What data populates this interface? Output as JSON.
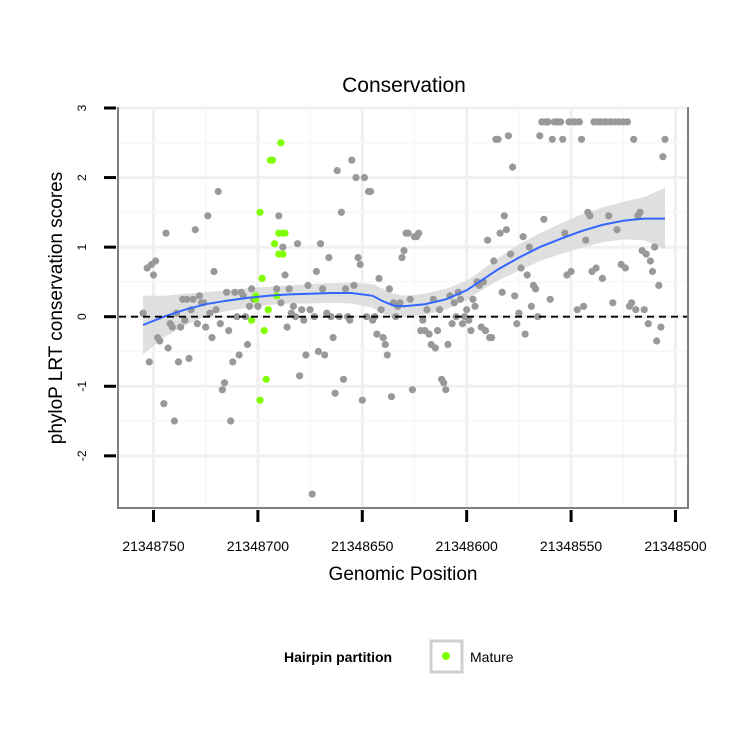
{
  "chart_data": {
    "type": "scatter",
    "title": "Conservation",
    "xlabel": "Genomic Position",
    "ylabel": "phyloP LRT conservation scores",
    "x_reversed": true,
    "xlim": [
      21348767,
      21348494
    ],
    "ylim": [
      -2.75,
      3.0
    ],
    "x_ticks": [
      21348750,
      21348700,
      21348650,
      21348600,
      21348550,
      21348500
    ],
    "x_tick_labels": [
      "21348750",
      "21348700",
      "21348650",
      "21348600",
      "21348550",
      "21348500"
    ],
    "y_ticks": [
      -2,
      -1,
      0,
      1,
      2,
      3
    ],
    "y_tick_labels": [
      "-2",
      "-1",
      "0",
      "1",
      "2",
      "3"
    ],
    "reference_line": {
      "y": 0,
      "style": "dashed"
    },
    "legend": {
      "title": "Hairpin partition",
      "entries": [
        {
          "label": "Mature",
          "color": "#7fff00"
        }
      ],
      "position": "bottom"
    },
    "colors": {
      "other": "#999999",
      "mature": "#7fff00",
      "smooth": "#3366ff",
      "ribbon": "#d9d9d9"
    },
    "series": [
      {
        "name": "Other",
        "points": [
          [
            21348755,
            0.05
          ],
          [
            21348753,
            0.7
          ],
          [
            21348752,
            -0.65
          ],
          [
            21348751,
            0.75
          ],
          [
            21348750,
            0.6
          ],
          [
            21348749,
            0.8
          ],
          [
            21348748,
            -0.3
          ],
          [
            21348747,
            -0.35
          ],
          [
            21348745,
            -1.25
          ],
          [
            21348744,
            1.2
          ],
          [
            21348743,
            -0.45
          ],
          [
            21348742,
            -0.1
          ],
          [
            21348741,
            -0.15
          ],
          [
            21348740,
            -1.5
          ],
          [
            21348739,
            0.05
          ],
          [
            21348738,
            -0.65
          ],
          [
            21348737,
            -0.15
          ],
          [
            21348736,
            0.25
          ],
          [
            21348735,
            -0.05
          ],
          [
            21348734,
            0.25
          ],
          [
            21348733,
            -0.6
          ],
          [
            21348732,
            0.1
          ],
          [
            21348731,
            0.25
          ],
          [
            21348730,
            1.25
          ],
          [
            21348729,
            -0.1
          ],
          [
            21348728,
            0.3
          ],
          [
            21348727,
            0.2
          ],
          [
            21348726,
            0.2
          ],
          [
            21348725,
            -0.15
          ],
          [
            21348724,
            1.45
          ],
          [
            21348723,
            0.05
          ],
          [
            21348722,
            -0.3
          ],
          [
            21348721,
            0.65
          ],
          [
            21348720,
            0.1
          ],
          [
            21348719,
            1.8
          ],
          [
            21348718,
            -0.1
          ],
          [
            21348717,
            -1.05
          ],
          [
            21348716,
            -0.95
          ],
          [
            21348715,
            0.35
          ],
          [
            21348714,
            -0.2
          ],
          [
            21348713,
            -1.5
          ],
          [
            21348712,
            -0.65
          ],
          [
            21348711,
            0.35
          ],
          [
            21348710,
            0.0
          ],
          [
            21348709,
            -0.55
          ],
          [
            21348708,
            0.35
          ],
          [
            21348707,
            0.3
          ],
          [
            21348706,
            0.0
          ],
          [
            21348705,
            -0.4
          ],
          [
            21348704,
            0.15
          ],
          [
            21348703,
            0.4
          ],
          [
            21348702,
            0.25
          ],
          [
            21348700,
            0.15
          ],
          [
            21348691,
            0.4
          ],
          [
            21348690,
            1.45
          ],
          [
            21348689,
            0.2
          ],
          [
            21348688,
            1.0
          ],
          [
            21348687,
            0.6
          ],
          [
            21348686,
            -0.15
          ],
          [
            21348685,
            0.4
          ],
          [
            21348684,
            0.05
          ],
          [
            21348683,
            0.15
          ],
          [
            21348682,
            0.0
          ],
          [
            21348681,
            1.05
          ],
          [
            21348680,
            -0.85
          ],
          [
            21348679,
            0.1
          ],
          [
            21348678,
            -0.05
          ],
          [
            21348677,
            -0.55
          ],
          [
            21348676,
            0.45
          ],
          [
            21348675,
            0.1
          ],
          [
            21348674,
            -2.55
          ],
          [
            21348673,
            0.0
          ],
          [
            21348672,
            0.65
          ],
          [
            21348671,
            -0.5
          ],
          [
            21348670,
            1.05
          ],
          [
            21348669,
            0.4
          ],
          [
            21348668,
            -0.55
          ],
          [
            21348667,
            0.05
          ],
          [
            21348666,
            0.85
          ],
          [
            21348665,
            0.0
          ],
          [
            21348664,
            -0.3
          ],
          [
            21348663,
            -1.1
          ],
          [
            21348662,
            2.1
          ],
          [
            21348661,
            0.0
          ],
          [
            21348660,
            1.5
          ],
          [
            21348659,
            -0.9
          ],
          [
            21348658,
            0.4
          ],
          [
            21348657,
            0.0
          ],
          [
            21348656,
            -0.05
          ],
          [
            21348655,
            2.25
          ],
          [
            21348654,
            0.45
          ],
          [
            21348653,
            2.0
          ],
          [
            21348652,
            0.85
          ],
          [
            21348651,
            0.75
          ],
          [
            21348650,
            -1.2
          ],
          [
            21348649,
            2.0
          ],
          [
            21348648,
            0.0
          ],
          [
            21348647,
            1.8
          ],
          [
            21348646,
            1.8
          ],
          [
            21348645,
            -0.05
          ],
          [
            21348644,
            0.0
          ],
          [
            21348643,
            -0.25
          ],
          [
            21348642,
            0.55
          ],
          [
            21348641,
            0.1
          ],
          [
            21348640,
            -0.3
          ],
          [
            21348639,
            -0.4
          ],
          [
            21348638,
            -0.55
          ],
          [
            21348637,
            0.4
          ],
          [
            21348636,
            -1.15
          ],
          [
            21348635,
            0.2
          ],
          [
            21348634,
            0.0
          ],
          [
            21348633,
            0.15
          ],
          [
            21348632,
            0.2
          ],
          [
            21348631,
            0.85
          ],
          [
            21348630,
            0.95
          ],
          [
            21348629,
            1.2
          ],
          [
            21348628,
            1.2
          ],
          [
            21348627,
            0.25
          ],
          [
            21348626,
            -1.05
          ],
          [
            21348625,
            1.15
          ],
          [
            21348624,
            1.15
          ],
          [
            21348623,
            1.2
          ],
          [
            21348622,
            -0.2
          ],
          [
            21348621,
            -0.05
          ],
          [
            21348620,
            -0.2
          ],
          [
            21348619,
            0.1
          ],
          [
            21348618,
            -0.25
          ],
          [
            21348617,
            -0.4
          ],
          [
            21348616,
            0.25
          ],
          [
            21348615,
            -0.45
          ],
          [
            21348614,
            -0.2
          ],
          [
            21348613,
            0.1
          ],
          [
            21348612,
            -0.9
          ],
          [
            21348611,
            -0.95
          ],
          [
            21348610,
            -1.05
          ],
          [
            21348609,
            -0.4
          ],
          [
            21348608,
            0.3
          ],
          [
            21348607,
            -0.1
          ],
          [
            21348606,
            0.2
          ],
          [
            21348605,
            0.0
          ],
          [
            21348604,
            0.35
          ],
          [
            21348603,
            0.25
          ],
          [
            21348602,
            -0.1
          ],
          [
            21348601,
            0.0
          ],
          [
            21348600,
            0.1
          ],
          [
            21348599,
            -0.05
          ],
          [
            21348598,
            -0.2
          ],
          [
            21348597,
            0.25
          ],
          [
            21348596,
            0.15
          ],
          [
            21348595,
            0.5
          ],
          [
            21348594,
            0.45
          ],
          [
            21348593,
            -0.15
          ],
          [
            21348592,
            0.5
          ],
          [
            21348591,
            -0.2
          ],
          [
            21348590,
            1.1
          ],
          [
            21348589,
            -0.3
          ],
          [
            21348588,
            -0.3
          ],
          [
            21348587,
            0.8
          ],
          [
            21348586,
            2.55
          ],
          [
            21348585,
            2.55
          ],
          [
            21348584,
            1.2
          ],
          [
            21348583,
            0.35
          ],
          [
            21348582,
            1.45
          ],
          [
            21348581,
            1.25
          ],
          [
            21348580,
            2.6
          ],
          [
            21348579,
            0.9
          ],
          [
            21348578,
            2.15
          ],
          [
            21348577,
            0.3
          ],
          [
            21348576,
            -0.1
          ],
          [
            21348575,
            0.05
          ],
          [
            21348574,
            0.7
          ],
          [
            21348573,
            1.15
          ],
          [
            21348572,
            -0.25
          ],
          [
            21348571,
            0.6
          ],
          [
            21348570,
            1.0
          ],
          [
            21348569,
            0.15
          ],
          [
            21348568,
            0.45
          ],
          [
            21348567,
            0.4
          ],
          [
            21348566,
            0.0
          ],
          [
            21348565,
            2.6
          ],
          [
            21348564,
            2.8
          ],
          [
            21348563,
            1.4
          ],
          [
            21348562,
            2.8
          ],
          [
            21348561,
            2.8
          ],
          [
            21348560,
            0.25
          ],
          [
            21348559,
            2.55
          ],
          [
            21348558,
            2.8
          ],
          [
            21348557,
            2.8
          ],
          [
            21348556,
            2.8
          ],
          [
            21348555,
            2.8
          ],
          [
            21348554,
            2.55
          ],
          [
            21348553,
            1.2
          ],
          [
            21348552,
            0.6
          ],
          [
            21348551,
            2.8
          ],
          [
            21348550,
            0.65
          ],
          [
            21348549,
            2.8
          ],
          [
            21348548,
            2.8
          ],
          [
            21348547,
            0.1
          ],
          [
            21348546,
            2.8
          ],
          [
            21348545,
            2.55
          ],
          [
            21348544,
            0.15
          ],
          [
            21348543,
            1.1
          ],
          [
            21348542,
            1.5
          ],
          [
            21348541,
            1.45
          ],
          [
            21348540,
            0.65
          ],
          [
            21348539,
            2.8
          ],
          [
            21348538,
            0.7
          ],
          [
            21348537,
            2.8
          ],
          [
            21348536,
            2.8
          ],
          [
            21348535,
            0.55
          ],
          [
            21348534,
            2.8
          ],
          [
            21348533,
            2.8
          ],
          [
            21348532,
            1.45
          ],
          [
            21348531,
            2.8
          ],
          [
            21348530,
            0.2
          ],
          [
            21348529,
            2.8
          ],
          [
            21348528,
            1.25
          ],
          [
            21348527,
            2.8
          ],
          [
            21348526,
            0.75
          ],
          [
            21348525,
            2.8
          ],
          [
            21348524,
            0.7
          ],
          [
            21348523,
            2.8
          ],
          [
            21348522,
            0.15
          ],
          [
            21348521,
            0.2
          ],
          [
            21348520,
            2.55
          ],
          [
            21348519,
            0.1
          ],
          [
            21348518,
            1.45
          ],
          [
            21348517,
            1.5
          ],
          [
            21348516,
            0.95
          ],
          [
            21348515,
            0.1
          ],
          [
            21348514,
            0.9
          ],
          [
            21348513,
            -0.1
          ],
          [
            21348512,
            0.8
          ],
          [
            21348511,
            0.65
          ],
          [
            21348510,
            1.0
          ],
          [
            21348509,
            -0.35
          ],
          [
            21348508,
            0.45
          ],
          [
            21348507,
            -0.15
          ],
          [
            21348506,
            2.3
          ],
          [
            21348505,
            2.55
          ]
        ]
      },
      {
        "name": "Mature",
        "points": [
          [
            21348701,
            0.3
          ],
          [
            21348701,
            0.25
          ],
          [
            21348699,
            1.5
          ],
          [
            21348698,
            0.55
          ],
          [
            21348697,
            -0.2
          ],
          [
            21348703,
            -0.05
          ],
          [
            21348699,
            -1.2
          ],
          [
            21348696,
            -0.9
          ],
          [
            21348695,
            0.1
          ],
          [
            21348694,
            2.25
          ],
          [
            21348693,
            2.25
          ],
          [
            21348692,
            1.05
          ],
          [
            21348691,
            0.3
          ],
          [
            21348690,
            0.9
          ],
          [
            21348690,
            1.2
          ],
          [
            21348689,
            2.5
          ],
          [
            21348688,
            1.2
          ],
          [
            21348688,
            0.9
          ],
          [
            21348687,
            1.2
          ]
        ]
      }
    ],
    "smooth": {
      "x": [
        21348755,
        21348745,
        21348735,
        21348725,
        21348715,
        21348705,
        21348695,
        21348685,
        21348675,
        21348665,
        21348655,
        21348645,
        21348640,
        21348635,
        21348630,
        21348620,
        21348610,
        21348600,
        21348595,
        21348590,
        21348585,
        21348575,
        21348565,
        21348555,
        21348545,
        21348535,
        21348525,
        21348515,
        21348505
      ],
      "y": [
        -0.12,
        0.0,
        0.1,
        0.18,
        0.23,
        0.27,
        0.3,
        0.32,
        0.33,
        0.34,
        0.34,
        0.3,
        0.22,
        0.16,
        0.15,
        0.18,
        0.25,
        0.38,
        0.48,
        0.58,
        0.68,
        0.85,
        1.0,
        1.12,
        1.23,
        1.32,
        1.38,
        1.41,
        1.41
      ],
      "upper": [
        0.3,
        0.3,
        0.33,
        0.35,
        0.38,
        0.41,
        0.43,
        0.45,
        0.47,
        0.48,
        0.49,
        0.47,
        0.4,
        0.33,
        0.3,
        0.33,
        0.4,
        0.52,
        0.62,
        0.73,
        0.84,
        1.04,
        1.2,
        1.34,
        1.47,
        1.57,
        1.65,
        1.72,
        1.85
      ],
      "lower": [
        -0.54,
        -0.3,
        -0.13,
        0.01,
        0.08,
        0.13,
        0.17,
        0.19,
        0.19,
        0.2,
        0.19,
        0.13,
        0.04,
        -0.01,
        0.0,
        0.03,
        0.1,
        0.24,
        0.34,
        0.43,
        0.52,
        0.66,
        0.8,
        0.9,
        0.99,
        1.07,
        1.11,
        1.1,
        0.97
      ]
    }
  }
}
